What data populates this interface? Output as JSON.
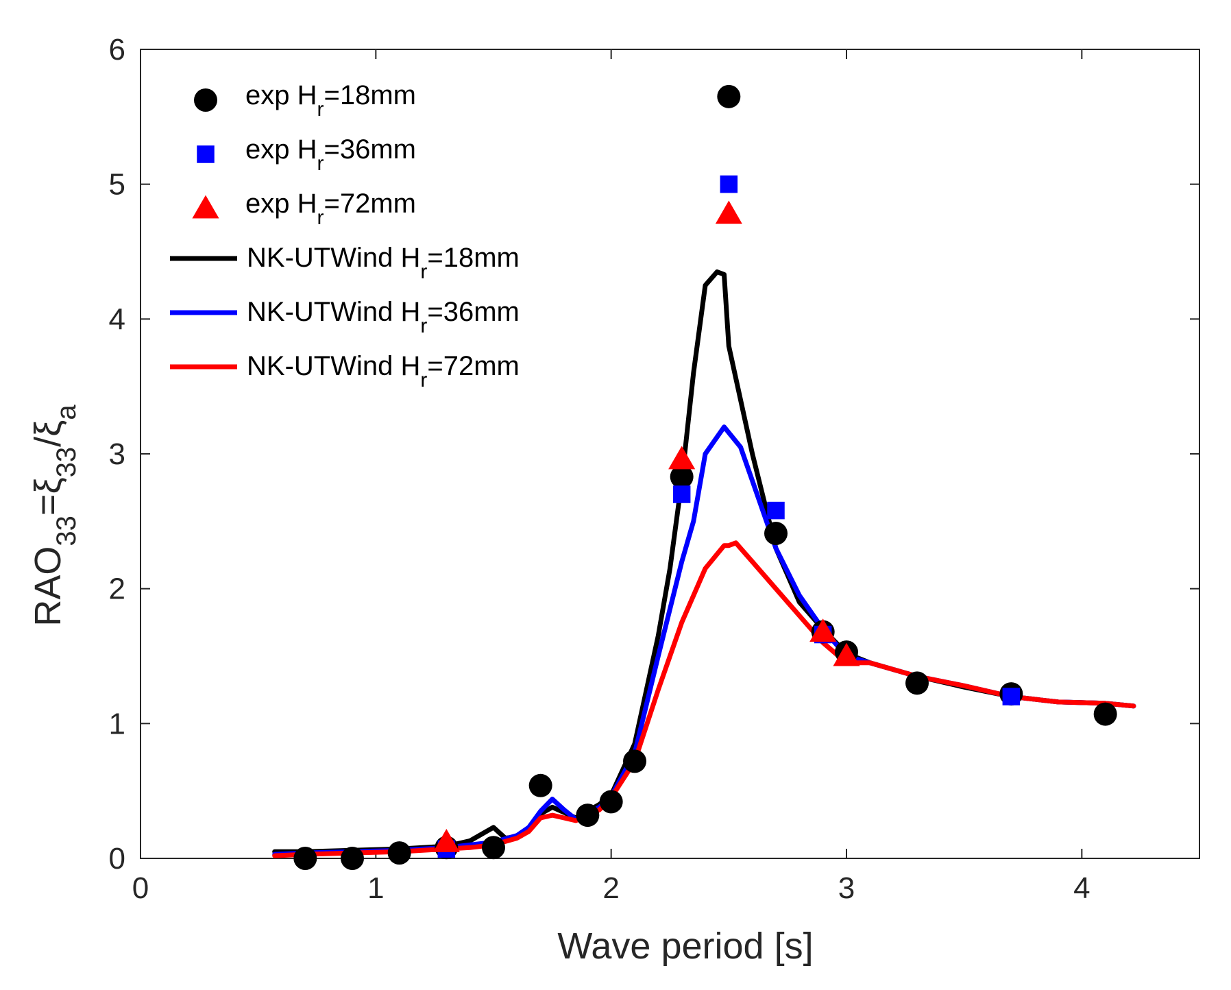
{
  "chart_data": {
    "type": "scatter",
    "xlabel": "Wave period [s]",
    "ylabel": "RAO_33=ξ_33/ξ_a",
    "ylabel_parts": {
      "main": "RAO",
      "sub1": "33",
      "eq": "=ξ",
      "sub2": "33",
      "slash": "/ξ",
      "sub3": "a"
    },
    "xlim": [
      0,
      4.5
    ],
    "ylim": [
      0,
      6
    ],
    "xticks": [
      "0",
      "1",
      "2",
      "3",
      "4"
    ],
    "yticks": [
      "0",
      "1",
      "2",
      "3",
      "4",
      "5",
      "6"
    ],
    "grid": false,
    "legend_position": "top-left",
    "series": [
      {
        "name": "exp H_r=18mm",
        "label": {
          "pre": "exp H",
          "sub": "r",
          "post": "=18mm"
        },
        "kind": "marker",
        "marker": "circle",
        "color": "#000000",
        "x": [
          0.7,
          0.9,
          1.1,
          1.3,
          1.5,
          1.7,
          1.9,
          2.0,
          2.1,
          2.3,
          2.5,
          2.7,
          2.9,
          3.0,
          3.3,
          3.7,
          4.1
        ],
        "y": [
          0.0,
          0.0,
          0.04,
          0.08,
          0.08,
          0.54,
          0.32,
          0.42,
          0.72,
          2.83,
          5.65,
          2.41,
          1.68,
          1.53,
          1.3,
          1.22,
          1.07
        ]
      },
      {
        "name": "exp H_r=36mm",
        "label": {
          "pre": "exp H",
          "sub": "r",
          "post": "=36mm"
        },
        "kind": "marker",
        "marker": "square",
        "color": "#0000ff",
        "x": [
          1.3,
          2.3,
          2.5,
          2.7,
          2.9,
          3.7
        ],
        "y": [
          0.07,
          2.7,
          5.0,
          2.58,
          1.66,
          1.2
        ]
      },
      {
        "name": "exp H_r=72mm",
        "label": {
          "pre": "exp H",
          "sub": "r",
          "post": "=72mm"
        },
        "kind": "marker",
        "marker": "triangle",
        "color": "#ff0000",
        "x": [
          1.3,
          2.3,
          2.5,
          2.9,
          3.0
        ],
        "y": [
          0.12,
          2.96,
          4.78,
          1.68,
          1.5
        ]
      },
      {
        "name": "NK-UTWind H_r=18mm",
        "label": {
          "pre": "NK-UTWind H",
          "sub": "r",
          "post": "=18mm"
        },
        "kind": "line",
        "color": "#000000",
        "x": [
          0.57,
          0.7,
          0.9,
          1.1,
          1.3,
          1.4,
          1.5,
          1.55,
          1.6,
          1.65,
          1.7,
          1.75,
          1.8,
          1.85,
          1.9,
          1.95,
          2.0,
          2.1,
          2.2,
          2.25,
          2.3,
          2.35,
          2.4,
          2.45,
          2.48,
          2.5,
          2.6,
          2.7,
          2.8,
          2.9,
          3.0,
          3.1,
          3.3,
          3.5,
          3.7,
          3.9,
          4.1,
          4.22
        ],
        "y": [
          0.05,
          0.05,
          0.06,
          0.07,
          0.09,
          0.13,
          0.23,
          0.15,
          0.16,
          0.22,
          0.33,
          0.38,
          0.34,
          0.3,
          0.35,
          0.4,
          0.47,
          0.85,
          1.65,
          2.15,
          2.8,
          3.6,
          4.25,
          4.35,
          4.33,
          3.8,
          3.0,
          2.3,
          1.9,
          1.7,
          1.52,
          1.45,
          1.35,
          1.27,
          1.2,
          1.16,
          1.15,
          1.13
        ]
      },
      {
        "name": "NK-UTWind H_r=36mm",
        "label": {
          "pre": "NK-UTWind H",
          "sub": "r",
          "post": "=36mm"
        },
        "kind": "line",
        "color": "#0000ff",
        "x": [
          0.57,
          0.7,
          0.9,
          1.1,
          1.3,
          1.4,
          1.5,
          1.6,
          1.65,
          1.7,
          1.75,
          1.8,
          1.85,
          1.9,
          1.95,
          2.0,
          2.1,
          2.2,
          2.3,
          2.35,
          2.4,
          2.48,
          2.55,
          2.6,
          2.7,
          2.8,
          2.9,
          3.0,
          3.1,
          3.3,
          3.5,
          3.7,
          3.9,
          4.1,
          4.22
        ],
        "y": [
          0.03,
          0.04,
          0.05,
          0.06,
          0.08,
          0.1,
          0.12,
          0.17,
          0.23,
          0.35,
          0.44,
          0.36,
          0.29,
          0.33,
          0.38,
          0.46,
          0.78,
          1.5,
          2.2,
          2.5,
          3.0,
          3.2,
          3.05,
          2.8,
          2.3,
          1.95,
          1.7,
          1.5,
          1.45,
          1.35,
          1.28,
          1.2,
          1.16,
          1.15,
          1.13
        ]
      },
      {
        "name": "NK-UTWind H_r=72mm",
        "label": {
          "pre": "NK-UTWind H",
          "sub": "r",
          "post": "=72mm"
        },
        "kind": "line",
        "color": "#ff0000",
        "x": [
          0.57,
          0.7,
          0.9,
          1.1,
          1.3,
          1.4,
          1.5,
          1.6,
          1.65,
          1.7,
          1.75,
          1.8,
          1.85,
          1.9,
          1.95,
          2.0,
          2.1,
          2.2,
          2.3,
          2.4,
          2.48,
          2.5,
          2.53,
          2.6,
          2.7,
          2.8,
          2.9,
          3.0,
          3.1,
          3.3,
          3.5,
          3.7,
          3.9,
          4.1,
          4.22
        ],
        "y": [
          0.02,
          0.03,
          0.04,
          0.05,
          0.07,
          0.08,
          0.1,
          0.15,
          0.2,
          0.3,
          0.32,
          0.3,
          0.28,
          0.32,
          0.36,
          0.45,
          0.72,
          1.25,
          1.75,
          2.15,
          2.32,
          2.32,
          2.34,
          2.2,
          2.0,
          1.8,
          1.6,
          1.45,
          1.45,
          1.35,
          1.28,
          1.2,
          1.16,
          1.15,
          1.13
        ]
      }
    ]
  }
}
